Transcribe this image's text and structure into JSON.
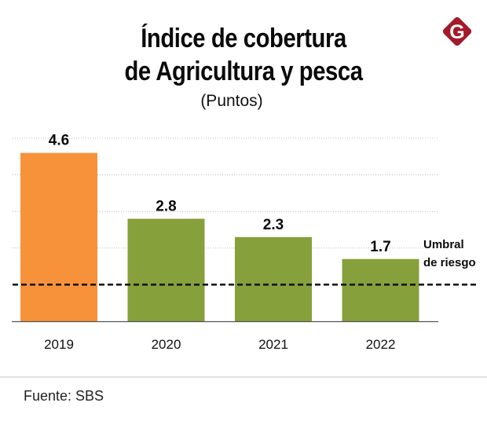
{
  "header": {
    "title_line1": "Índice de cobertura",
    "title_line2": "de Agricultura y pesca",
    "subtitle": "(Puntos)",
    "logo_letter": "G"
  },
  "colors": {
    "highlight_bar": "#f7923a",
    "bar": "#86a03c",
    "logo": "#a31a2a",
    "threshold_line": "#111111",
    "gridline": "#bbbbbb"
  },
  "footer": {
    "source": "Fuente: SBS"
  },
  "chart_data": {
    "type": "bar",
    "title": "Índice de cobertura de Agricultura y pesca",
    "subtitle": "(Puntos)",
    "xlabel": "",
    "ylabel": "Puntos",
    "categories": [
      "2019",
      "2020",
      "2021",
      "2022"
    ],
    "values": [
      4.6,
      2.8,
      2.3,
      1.7
    ],
    "data_labels": [
      "4.6",
      "2.8",
      "2.3",
      "1.7"
    ],
    "highlighted_category": "2019",
    "ylim": [
      0,
      5
    ],
    "gridlines": [
      1,
      2,
      3,
      4,
      5
    ],
    "grid": true,
    "reference_line": {
      "value": 1,
      "label_line1": "Umbral",
      "label_line2": "de riesgo",
      "style": "dashed"
    },
    "legend": "none"
  }
}
